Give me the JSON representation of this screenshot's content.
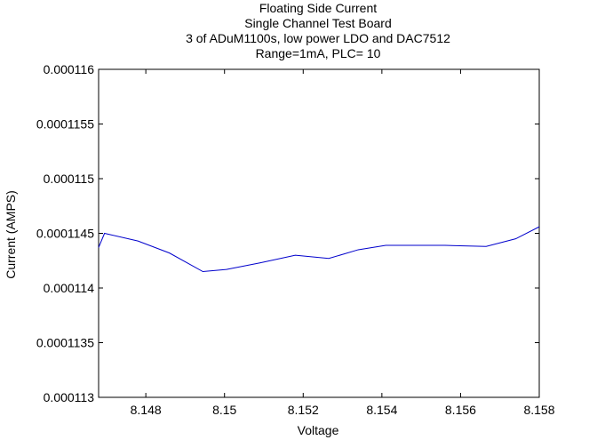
{
  "chart_data": {
    "type": "line",
    "title_lines": [
      "Floating Side Current",
      "Single Channel Test Board",
      "3 of ADuM1100s, low power LDO and DAC7512",
      "Range=1mA, PLC= 10"
    ],
    "xlabel": "Voltage",
    "ylabel": "Current (AMPS)",
    "xlim": [
      8.1468,
      8.158
    ],
    "ylim": [
      0.000113,
      0.000116
    ],
    "xticks": [
      8.148,
      8.15,
      8.152,
      8.154,
      8.156,
      8.158
    ],
    "xtick_labels": [
      "8.148",
      "8.15",
      "8.152",
      "8.154",
      "8.156",
      "8.158"
    ],
    "yticks": [
      0.000113,
      0.0001135,
      0.000114,
      0.0001145,
      0.000115,
      0.0001155,
      0.000116
    ],
    "ytick_labels": [
      "0.000113",
      "0.0001135",
      "0.000114",
      "0.0001145",
      "0.000115",
      "0.0001155",
      "0.000116"
    ],
    "grid": false,
    "series": [
      {
        "color": "#0000cc",
        "x": [
          8.1468,
          8.14695,
          8.1478,
          8.1486,
          8.14945,
          8.15005,
          8.1509,
          8.1518,
          8.15265,
          8.1534,
          8.1541,
          8.15495,
          8.1556,
          8.15665,
          8.1574,
          8.158
        ],
        "y": [
          0.00011437,
          0.0001145,
          0.00011443,
          0.00011432,
          0.00011415,
          0.00011417,
          0.00011423,
          0.0001143,
          0.00011427,
          0.00011435,
          0.00011439,
          0.00011439,
          0.00011439,
          0.00011438,
          0.00011445,
          0.00011456
        ]
      }
    ]
  }
}
